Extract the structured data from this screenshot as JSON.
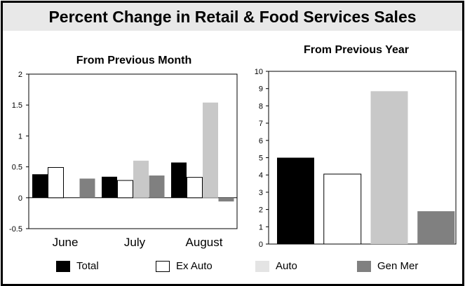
{
  "title": "Percent Change in Retail & Food Services Sales",
  "colors": {
    "total": "#000000",
    "ex_auto": "#ffffff",
    "auto": "#c8c8c8",
    "gen_mer": "#808080",
    "title_bg": "#e8e8e8"
  },
  "legend": [
    {
      "name": "Total",
      "color": "#000000"
    },
    {
      "name": "Ex Auto",
      "color": "#ffffff"
    },
    {
      "name": "Auto",
      "color": "#e4e4e4"
    },
    {
      "name": "Gen Mer",
      "color": "#808080"
    }
  ],
  "chart_data": [
    {
      "type": "bar",
      "title": "From Previous Month",
      "categories": [
        "June",
        "July",
        "August"
      ],
      "series": [
        {
          "name": "Total",
          "values": [
            0.38,
            0.34,
            0.57
          ]
        },
        {
          "name": "Ex Auto",
          "values": [
            0.49,
            0.28,
            0.33
          ]
        },
        {
          "name": "Auto",
          "values": [
            0,
            0.6,
            1.54
          ]
        },
        {
          "name": "Gen Mer",
          "values": [
            0.31,
            0.36,
            -0.06
          ]
        }
      ],
      "ylim": [
        -0.5,
        2
      ],
      "yticks": [
        "2",
        "1.5",
        "1",
        "0.5",
        "0",
        "-0.5"
      ],
      "ytick_values": [
        2,
        1.5,
        1,
        0.5,
        0,
        -0.5
      ],
      "grid": false
    },
    {
      "type": "bar",
      "title": "From Previous Year",
      "categories": [
        "Total",
        "Ex Auto",
        "Auto",
        "Gen Mer"
      ],
      "values": [
        5.0,
        4.05,
        8.85,
        1.9
      ],
      "ylim": [
        0,
        10
      ],
      "yticks": [
        "10",
        "9",
        "8",
        "7",
        "6",
        "5",
        "4",
        "3",
        "2",
        "1",
        "0"
      ],
      "ytick_values": [
        10,
        9,
        8,
        7,
        6,
        5,
        4,
        3,
        2,
        1,
        0
      ],
      "grid": false
    }
  ]
}
